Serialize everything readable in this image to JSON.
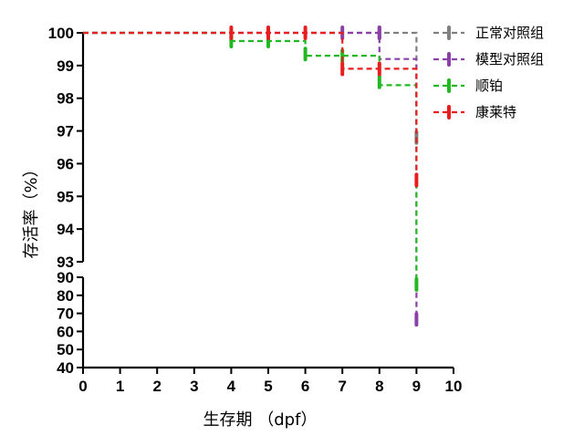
{
  "chart_data": {
    "type": "line",
    "subtype": "survival-step",
    "title": "",
    "xlabel": "生存期 （dpf）",
    "ylabel": "存活率（%）",
    "xlim": [
      0,
      10
    ],
    "xticks": [
      "0",
      "1",
      "2",
      "3",
      "4",
      "5",
      "6",
      "7",
      "8",
      "9",
      "10"
    ],
    "ylim": [
      40,
      100
    ],
    "y_axis_break": [
      90,
      93
    ],
    "yticks_upper": [
      "93",
      "94",
      "95",
      "96",
      "97",
      "98",
      "99",
      "100"
    ],
    "yticks_lower": [
      "40",
      "50",
      "60",
      "70",
      "80",
      "90"
    ],
    "grid": false,
    "legend_position": "top-right",
    "series": [
      {
        "name": "正常对照组",
        "color": "#808080",
        "steps": [
          [
            0,
            100
          ],
          [
            8,
            100
          ],
          [
            9,
            100
          ],
          [
            9,
            96.8
          ]
        ],
        "censor_marks": [
          [
            8,
            100
          ],
          [
            9,
            96.8
          ]
        ]
      },
      {
        "name": "模型对照组",
        "color": "#8B3FA8",
        "steps": [
          [
            0,
            100
          ],
          [
            7,
            100
          ],
          [
            8,
            100
          ],
          [
            8,
            99.2
          ],
          [
            9,
            99.2
          ],
          [
            9,
            66.7
          ]
        ],
        "censor_marks": [
          [
            7,
            100
          ],
          [
            8,
            100
          ],
          [
            9,
            66.7
          ]
        ]
      },
      {
        "name": "顺铂",
        "color": "#22B822",
        "steps": [
          [
            0,
            100
          ],
          [
            4,
            100
          ],
          [
            4,
            99.75
          ],
          [
            6,
            99.75
          ],
          [
            6,
            99.3
          ],
          [
            8,
            99.3
          ],
          [
            8,
            98.4
          ],
          [
            9,
            98.4
          ],
          [
            9,
            86
          ]
        ],
        "censor_marks": [
          [
            4,
            99.75
          ],
          [
            5,
            99.75
          ],
          [
            6,
            99.35
          ],
          [
            7,
            99.3
          ],
          [
            8,
            98.5
          ],
          [
            9,
            86
          ]
        ]
      },
      {
        "name": "康莱特",
        "color": "#E81E1E",
        "steps": [
          [
            0,
            100
          ],
          [
            7,
            100
          ],
          [
            7,
            98.9
          ],
          [
            9,
            98.9
          ],
          [
            9,
            95.5
          ]
        ],
        "censor_marks": [
          [
            4,
            100
          ],
          [
            5,
            100
          ],
          [
            6,
            100
          ],
          [
            7,
            98.9
          ],
          [
            8,
            98.9
          ],
          [
            9,
            95.5
          ]
        ]
      }
    ]
  }
}
